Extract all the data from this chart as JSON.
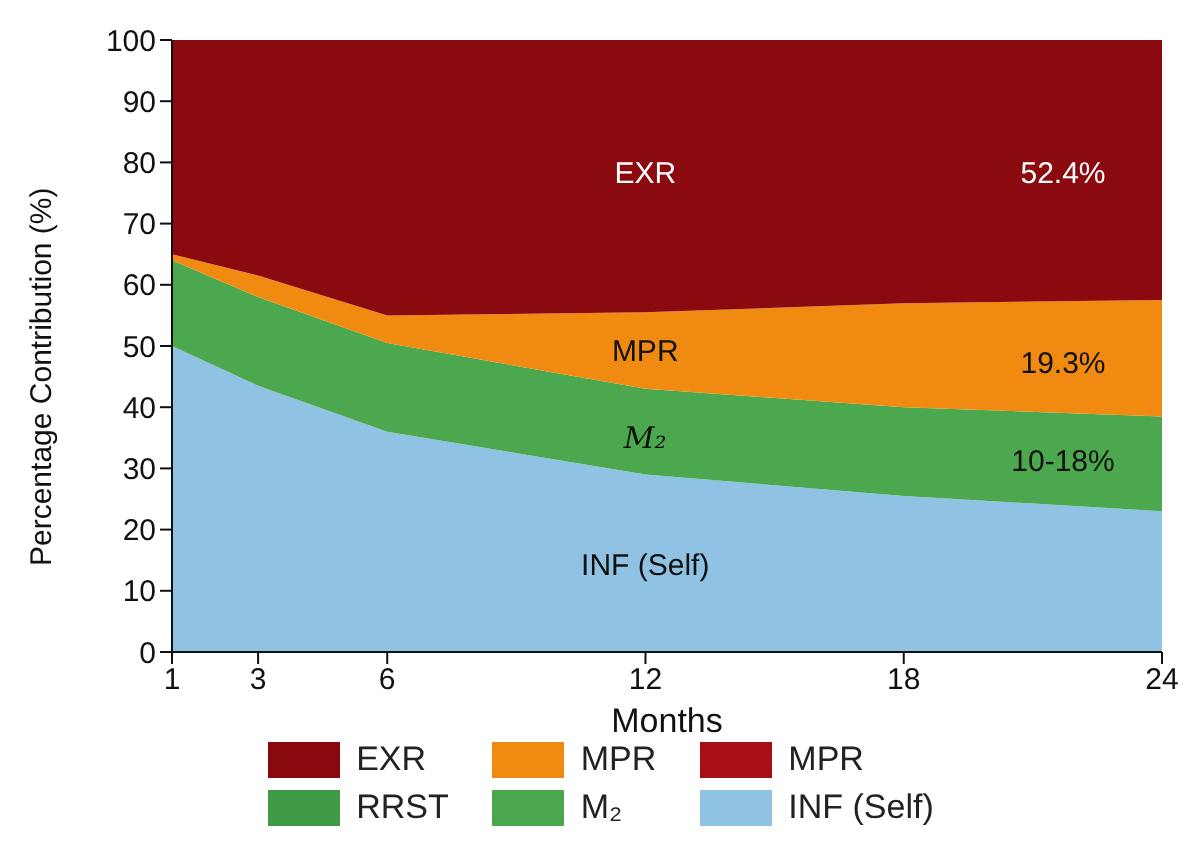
{
  "chart_data": {
    "type": "area",
    "stacked": true,
    "xlabel": "Months",
    "ylabel": "Percentage Contribution (%)",
    "x": [
      1,
      3,
      6,
      12,
      18,
      24
    ],
    "xlim": [
      1,
      24
    ],
    "xticks": [
      1,
      3,
      6,
      12,
      18,
      24
    ],
    "ylim": [
      0,
      100
    ],
    "yticks": [
      0,
      10,
      20,
      30,
      40,
      50,
      60,
      70,
      80,
      90,
      100
    ],
    "series": [
      {
        "name": "INF (Self)",
        "color": "#90c2e4",
        "values": [
          50,
          43.5,
          36,
          29,
          25.5,
          23
        ]
      },
      {
        "name": "M₂",
        "color": "#4ca84e",
        "values": [
          14,
          14.5,
          14.5,
          14,
          14.5,
          15.5
        ]
      },
      {
        "name": "RRST",
        "color": "#3f9a48",
        "values": [
          null,
          null,
          null,
          null,
          null,
          null
        ]
      },
      {
        "name": "MPR",
        "color": "#a81015",
        "values": [
          null,
          null,
          null,
          null,
          null,
          null
        ]
      },
      {
        "name": "MPR",
        "color": "#f08a10",
        "values": [
          1,
          3.5,
          4.5,
          12.5,
          17,
          19
        ]
      },
      {
        "name": "EXR",
        "color": "#8b0a10",
        "values": [
          35,
          38.5,
          45,
          44.5,
          43,
          42.5
        ]
      }
    ],
    "annotations": [
      "EXR",
      "52.4%",
      "MPR",
      "19.3%",
      "M₂",
      "10-18%",
      "INF (Self)"
    ],
    "grid": false,
    "legend": "bottom"
  }
}
